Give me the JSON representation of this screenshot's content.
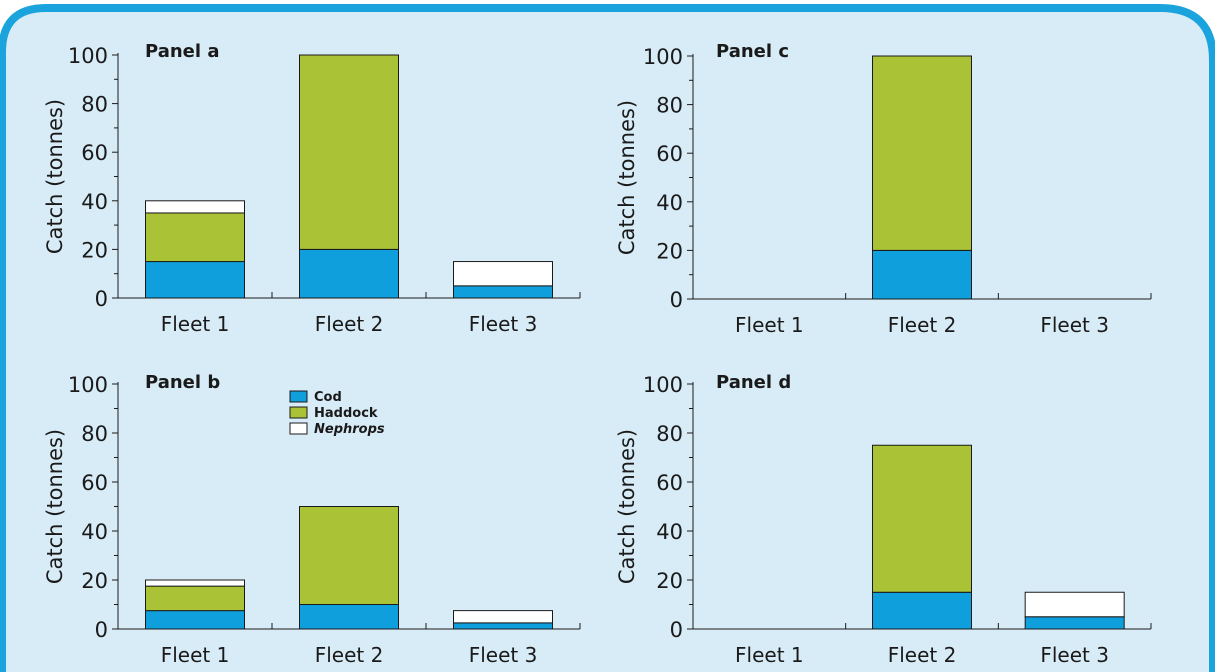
{
  "colors": {
    "background": "#d8ecf7",
    "frame": "#1aa3dd",
    "cod": "#0f9fdc",
    "haddock": "#a9c236",
    "nephrops": "#ffffff",
    "axis": "#1a1a1a"
  },
  "legend": {
    "items": [
      {
        "label": "Cod",
        "color": "#0f9fdc",
        "italic": false
      },
      {
        "label": "Haddock",
        "color": "#a9c236",
        "italic": false
      },
      {
        "label": "Nephrops",
        "color": "#ffffff",
        "italic": true
      }
    ]
  },
  "chart_data": [
    {
      "type": "bar",
      "stacked": true,
      "title": "Panel a",
      "ylabel": "Catch (tonnes)",
      "ylim": [
        0,
        100
      ],
      "yticks": [
        0,
        20,
        40,
        60,
        80,
        100
      ],
      "categories": [
        "Fleet 1",
        "Fleet 2",
        "Fleet 3"
      ],
      "series": [
        {
          "name": "Cod",
          "values": [
            15,
            20,
            5
          ]
        },
        {
          "name": "Haddock",
          "values": [
            20,
            80,
            0
          ]
        },
        {
          "name": "Nephrops",
          "values": [
            5,
            0,
            10
          ]
        }
      ]
    },
    {
      "type": "bar",
      "stacked": true,
      "title": "Panel c",
      "ylabel": "Catch (tonnes)",
      "ylim": [
        0,
        100
      ],
      "yticks": [
        0,
        20,
        40,
        60,
        80,
        100
      ],
      "categories": [
        "Fleet 1",
        "Fleet 2",
        "Fleet 3"
      ],
      "series": [
        {
          "name": "Cod",
          "values": [
            0,
            20,
            0
          ]
        },
        {
          "name": "Haddock",
          "values": [
            0,
            80,
            0
          ]
        },
        {
          "name": "Nephrops",
          "values": [
            0,
            0,
            0
          ]
        }
      ]
    },
    {
      "type": "bar",
      "stacked": true,
      "title": "Panel b",
      "ylabel": "Catch (tonnes)",
      "ylim": [
        0,
        100
      ],
      "yticks": [
        0,
        20,
        40,
        60,
        80,
        100
      ],
      "categories": [
        "Fleet 1",
        "Fleet 2",
        "Fleet 3"
      ],
      "series": [
        {
          "name": "Cod",
          "values": [
            7.5,
            10,
            2.5
          ]
        },
        {
          "name": "Haddock",
          "values": [
            10,
            40,
            0
          ]
        },
        {
          "name": "Nephrops",
          "values": [
            2.5,
            0,
            5
          ]
        }
      ]
    },
    {
      "type": "bar",
      "stacked": true,
      "title": "Panel d",
      "ylabel": "Catch (tonnes)",
      "ylim": [
        0,
        100
      ],
      "yticks": [
        0,
        20,
        40,
        60,
        80,
        100
      ],
      "categories": [
        "Fleet 1",
        "Fleet 2",
        "Fleet 3"
      ],
      "series": [
        {
          "name": "Cod",
          "values": [
            0,
            15,
            5
          ]
        },
        {
          "name": "Haddock",
          "values": [
            0,
            60,
            0
          ]
        },
        {
          "name": "Nephrops",
          "values": [
            0,
            0,
            10
          ]
        }
      ]
    }
  ]
}
